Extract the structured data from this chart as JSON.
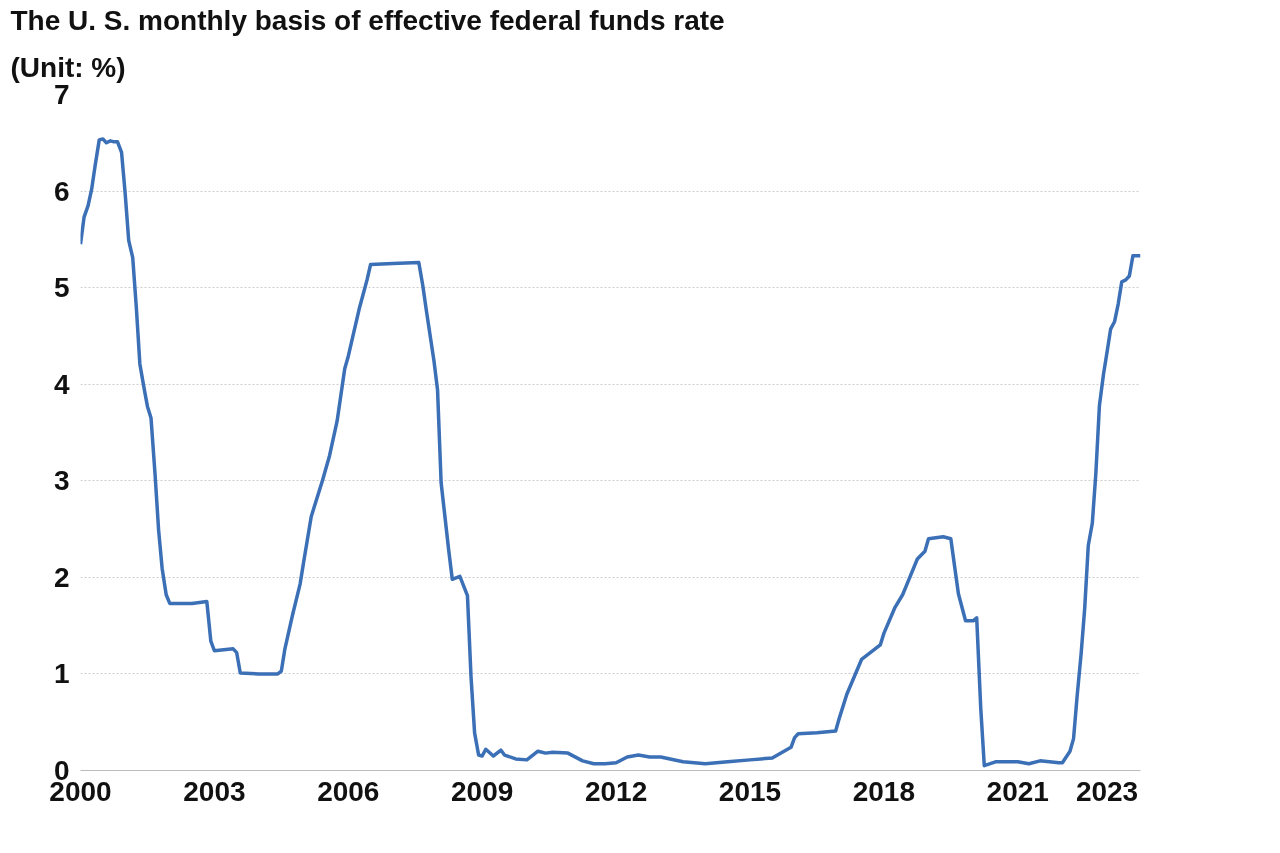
{
  "chart_data": {
    "type": "line",
    "title": "The U. S. monthly basis of effective federal funds rate",
    "subtitle": "(Unit: %)",
    "xlim": [
      2000,
      2023.75
    ],
    "xticks": [
      2000,
      2003,
      2006,
      2009,
      2012,
      2015,
      2018,
      2021,
      2023
    ],
    "ylim": [
      0,
      7
    ],
    "yticks": [
      0,
      1,
      2,
      3,
      4,
      5,
      6,
      7
    ],
    "grid": "y",
    "marker": "none",
    "line_style": "solid",
    "series": [
      {
        "color": "#3b6fb6",
        "x": [
          2000.0,
          2000.08,
          2000.17,
          2000.25,
          2000.33,
          2000.42,
          2000.5,
          2000.58,
          2000.67,
          2000.75,
          2000.83,
          2000.92,
          2001.0,
          2001.08,
          2001.17,
          2001.25,
          2001.33,
          2001.42,
          2001.5,
          2001.58,
          2001.67,
          2001.75,
          2001.83,
          2001.92,
          2002.0,
          2002.5,
          2002.83,
          2002.92,
          2003.0,
          2003.42,
          2003.5,
          2003.58,
          2004.0,
          2004.42,
          2004.5,
          2004.58,
          2004.75,
          2004.92,
          2005.0,
          2005.17,
          2005.42,
          2005.58,
          2005.75,
          2005.92,
          2006.0,
          2006.25,
          2006.42,
          2006.5,
          2007.0,
          2007.58,
          2007.67,
          2007.75,
          2007.92,
          2008.0,
          2008.08,
          2008.17,
          2008.25,
          2008.33,
          2008.5,
          2008.67,
          2008.75,
          2008.83,
          2008.92,
          2009.0,
          2009.08,
          2009.25,
          2009.42,
          2009.5,
          2009.75,
          2010.0,
          2010.25,
          2010.42,
          2010.58,
          2010.92,
          2011.25,
          2011.5,
          2011.75,
          2012.0,
          2012.25,
          2012.5,
          2012.75,
          2013.0,
          2013.5,
          2014.0,
          2014.5,
          2015.0,
          2015.5,
          2015.92,
          2016.0,
          2016.08,
          2016.5,
          2016.92,
          2017.0,
          2017.17,
          2017.5,
          2017.92,
          2018.0,
          2018.25,
          2018.42,
          2018.5,
          2018.75,
          2018.92,
          2019.0,
          2019.33,
          2019.5,
          2019.58,
          2019.67,
          2019.83,
          2020.0,
          2020.08,
          2020.17,
          2020.25,
          2020.5,
          2021.0,
          2021.25,
          2021.5,
          2021.92,
          2022.0,
          2022.17,
          2022.25,
          2022.33,
          2022.42,
          2022.5,
          2022.58,
          2022.67,
          2022.75,
          2022.83,
          2022.92,
          2023.0,
          2023.08,
          2023.17,
          2023.25,
          2023.33,
          2023.42,
          2023.5,
          2023.58,
          2023.75
        ],
        "values": [
          5.45,
          5.73,
          5.85,
          6.02,
          6.27,
          6.53,
          6.54,
          6.5,
          6.52,
          6.51,
          6.51,
          6.4,
          5.98,
          5.49,
          5.31,
          4.8,
          4.21,
          3.97,
          3.77,
          3.65,
          3.07,
          2.49,
          2.09,
          1.82,
          1.73,
          1.73,
          1.75,
          1.34,
          1.24,
          1.26,
          1.22,
          1.01,
          1.0,
          1.0,
          1.03,
          1.26,
          1.61,
          1.93,
          2.16,
          2.63,
          3.0,
          3.26,
          3.62,
          4.16,
          4.29,
          4.79,
          5.08,
          5.24,
          5.25,
          5.26,
          5.02,
          4.76,
          4.24,
          3.94,
          2.98,
          2.61,
          2.28,
          1.98,
          2.01,
          1.81,
          0.97,
          0.39,
          0.16,
          0.15,
          0.22,
          0.15,
          0.21,
          0.16,
          0.12,
          0.11,
          0.2,
          0.18,
          0.19,
          0.18,
          0.1,
          0.07,
          0.07,
          0.08,
          0.14,
          0.16,
          0.14,
          0.14,
          0.09,
          0.07,
          0.09,
          0.11,
          0.13,
          0.24,
          0.34,
          0.38,
          0.39,
          0.41,
          0.54,
          0.79,
          1.15,
          1.3,
          1.42,
          1.69,
          1.82,
          1.91,
          2.19,
          2.27,
          2.4,
          2.42,
          2.4,
          2.13,
          1.83,
          1.55,
          1.55,
          1.58,
          0.65,
          0.05,
          0.09,
          0.09,
          0.07,
          0.1,
          0.08,
          0.08,
          0.2,
          0.33,
          0.77,
          1.21,
          1.68,
          2.33,
          2.56,
          3.08,
          3.78,
          4.1,
          4.33,
          4.57,
          4.65,
          4.83,
          5.06,
          5.08,
          5.12,
          5.33,
          5.33
        ]
      }
    ]
  }
}
